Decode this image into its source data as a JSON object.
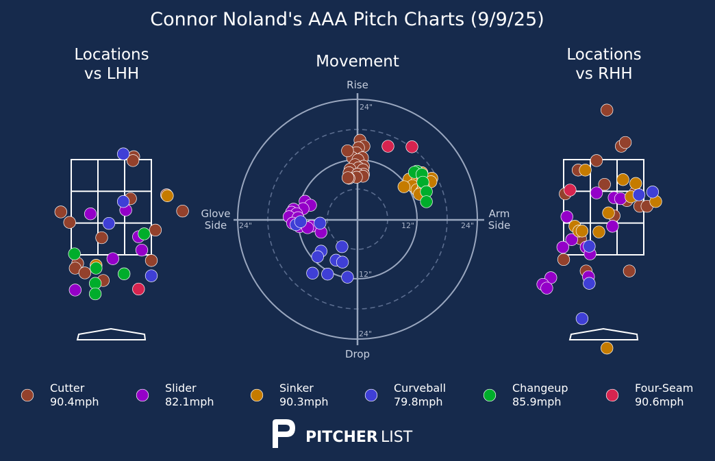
{
  "page": {
    "title": "Connor Noland's AAA Pitch Charts (9/9/25)",
    "background": "#162a4c",
    "brand": {
      "bold": "PITCHER",
      "light": "LIST"
    }
  },
  "panels": {
    "left_title_line1": "Locations",
    "left_title_line2": "vs LHH",
    "right_title_line1": "Locations",
    "right_title_line2": "vs RHH",
    "movement_title": "Movement",
    "movement_labels": {
      "top": "Rise",
      "bottom": "Drop",
      "left_line1": "Glove",
      "left_line2": "Side",
      "right_line1": "Arm",
      "right_line2": "Side"
    },
    "ring_labels": {
      "top24": "24\"",
      "left24": "24\"",
      "right12": "12\"",
      "right24": "24\"",
      "bottom12": "12\"",
      "bottom24": "24\""
    }
  },
  "pitch_types": [
    {
      "key": "cutter",
      "name": "Cutter",
      "velo": "90.4mph",
      "color": "#93412c"
    },
    {
      "key": "slider",
      "name": "Slider",
      "velo": "82.1mph",
      "color": "#9400c8"
    },
    {
      "key": "sinker",
      "name": "Sinker",
      "velo": "90.3mph",
      "color": "#c57b00"
    },
    {
      "key": "curveball",
      "name": "Curveball",
      "velo": "79.8mph",
      "color": "#3f3fd6"
    },
    {
      "key": "changeup",
      "name": "Changeup",
      "velo": "85.9mph",
      "color": "#00ad2b"
    },
    {
      "key": "fourseam",
      "name": "Four-Seam",
      "velo": "90.6mph",
      "color": "#d6244f"
    }
  ],
  "chart_data": [
    {
      "type": "scatter",
      "title": "Locations vs LHH",
      "x_unit": "zone widths from plate center (catcher view)",
      "y_unit": "zone heights from zone bottom",
      "points": [
        {
          "t": "cutter",
          "x": 0.28,
          "y": 1.03
        },
        {
          "t": "cutter",
          "x": 0.27,
          "y": 0.99
        },
        {
          "t": "cutter",
          "x": 0.24,
          "y": 0.59
        },
        {
          "t": "cutter",
          "x": 0.69,
          "y": 0.63
        },
        {
          "t": "cutter",
          "x": 0.89,
          "y": 0.46
        },
        {
          "t": "cutter",
          "x": 1.0,
          "y": 0.41
        },
        {
          "t": "cutter",
          "x": -0.63,
          "y": 0.45
        },
        {
          "t": "cutter",
          "x": -0.52,
          "y": 0.34
        },
        {
          "t": "cutter",
          "x": -0.12,
          "y": 0.18
        },
        {
          "t": "cutter",
          "x": 0.55,
          "y": 0.26
        },
        {
          "t": "cutter",
          "x": 0.5,
          "y": -0.06
        },
        {
          "t": "cutter",
          "x": -0.42,
          "y": -0.09
        },
        {
          "t": "cutter",
          "x": -0.45,
          "y": -0.14
        },
        {
          "t": "cutter",
          "x": -0.33,
          "y": -0.19
        },
        {
          "t": "cutter",
          "x": -0.1,
          "y": -0.27
        },
        {
          "t": "slider",
          "x": -0.26,
          "y": 0.43
        },
        {
          "t": "slider",
          "x": 0.18,
          "y": 0.47
        },
        {
          "t": "slider",
          "x": 0.34,
          "y": 0.19
        },
        {
          "t": "slider",
          "x": 0.38,
          "y": 0.05
        },
        {
          "t": "slider",
          "x": 0.02,
          "y": -0.04
        },
        {
          "t": "slider",
          "x": -0.45,
          "y": -0.37
        },
        {
          "t": "sinker",
          "x": 0.7,
          "y": 0.62
        },
        {
          "t": "sinker",
          "x": -0.19,
          "y": -0.11
        },
        {
          "t": "curveball",
          "x": 0.15,
          "y": 1.06
        },
        {
          "t": "curveball",
          "x": 0.15,
          "y": 0.56
        },
        {
          "t": "curveball",
          "x": -0.03,
          "y": 0.33
        },
        {
          "t": "curveball",
          "x": 0.5,
          "y": -0.22
        },
        {
          "t": "changeup",
          "x": 0.41,
          "y": 0.22
        },
        {
          "t": "changeup",
          "x": -0.46,
          "y": 0.01
        },
        {
          "t": "changeup",
          "x": -0.19,
          "y": -0.14
        },
        {
          "t": "changeup",
          "x": -0.2,
          "y": -0.3
        },
        {
          "t": "changeup",
          "x": 0.16,
          "y": -0.2
        },
        {
          "t": "changeup",
          "x": -0.2,
          "y": -0.41
        },
        {
          "t": "fourseam",
          "x": 0.34,
          "y": -0.36
        }
      ]
    },
    {
      "type": "scatter",
      "title": "Movement",
      "x_unit": "horizontal break (in), positive = arm side",
      "y_unit": "induced vertical break (in), positive = rise",
      "rings": [
        6,
        12,
        18,
        24
      ],
      "points": [
        {
          "t": "cutter",
          "x": 0.5,
          "y": 15.8
        },
        {
          "t": "cutter",
          "x": 1.3,
          "y": 14.6
        },
        {
          "t": "cutter",
          "x": 0.2,
          "y": 14.3
        },
        {
          "t": "cutter",
          "x": -0.2,
          "y": 13.3
        },
        {
          "t": "cutter",
          "x": 1.0,
          "y": 12.3
        },
        {
          "t": "cutter",
          "x": -1.0,
          "y": 12.3
        },
        {
          "t": "cutter",
          "x": -2.0,
          "y": 13.7
        },
        {
          "t": "cutter",
          "x": 0.1,
          "y": 11.9
        },
        {
          "t": "cutter",
          "x": 1.2,
          "y": 10.6
        },
        {
          "t": "cutter",
          "x": -0.5,
          "y": 10.9
        },
        {
          "t": "cutter",
          "x": 0.2,
          "y": 10.3
        },
        {
          "t": "cutter",
          "x": 1.1,
          "y": 9.9
        },
        {
          "t": "cutter",
          "x": -1.5,
          "y": 10.0
        },
        {
          "t": "cutter",
          "x": 1.2,
          "y": 9.0
        },
        {
          "t": "cutter",
          "x": -1.7,
          "y": 9.3
        },
        {
          "t": "cutter",
          "x": 0.0,
          "y": 9.0
        },
        {
          "t": "cutter",
          "x": 1.1,
          "y": 8.6
        },
        {
          "t": "cutter",
          "x": -0.2,
          "y": 8.4
        },
        {
          "t": "cutter",
          "x": -1.7,
          "y": 8.2
        },
        {
          "t": "cutter",
          "x": -1.9,
          "y": 8.3
        },
        {
          "t": "slider",
          "x": -10.5,
          "y": 3.6
        },
        {
          "t": "slider",
          "x": -9.4,
          "y": 2.8
        },
        {
          "t": "slider",
          "x": -10.9,
          "y": 2.1
        },
        {
          "t": "slider",
          "x": -12.8,
          "y": 2.0
        },
        {
          "t": "slider",
          "x": -13.2,
          "y": 1.4
        },
        {
          "t": "slider",
          "x": -12.2,
          "y": 1.1
        },
        {
          "t": "slider",
          "x": -13.7,
          "y": 0.5
        },
        {
          "t": "slider",
          "x": -11.9,
          "y": 0.3
        },
        {
          "t": "slider",
          "x": -13.0,
          "y": -0.8
        },
        {
          "t": "slider",
          "x": -11.6,
          "y": -1.5
        },
        {
          "t": "slider",
          "x": -9.2,
          "y": -1.4
        },
        {
          "t": "slider",
          "x": -7.3,
          "y": -2.6
        },
        {
          "t": "slider",
          "x": -10.0,
          "y": -1.7
        },
        {
          "t": "sinker",
          "x": 12.9,
          "y": 9.3
        },
        {
          "t": "sinker",
          "x": 10.3,
          "y": 8.0
        },
        {
          "t": "sinker",
          "x": 11.8,
          "y": 7.4
        },
        {
          "t": "sinker",
          "x": 13.1,
          "y": 8.0
        },
        {
          "t": "sinker",
          "x": 14.9,
          "y": 8.2
        },
        {
          "t": "sinker",
          "x": 11.0,
          "y": 6.7
        },
        {
          "t": "sinker",
          "x": 9.3,
          "y": 6.5
        },
        {
          "t": "sinker",
          "x": 11.9,
          "y": 5.9
        },
        {
          "t": "sinker",
          "x": 12.8,
          "y": 5.5
        },
        {
          "t": "sinker",
          "x": 14.7,
          "y": 7.5
        },
        {
          "t": "sinker",
          "x": 13.2,
          "y": 6.6
        },
        {
          "t": "sinker",
          "x": 12.4,
          "y": 5.0
        },
        {
          "t": "curveball",
          "x": -7.5,
          "y": -0.8
        },
        {
          "t": "curveball",
          "x": -12.3,
          "y": -1.1
        },
        {
          "t": "curveball",
          "x": -11.4,
          "y": -0.5
        },
        {
          "t": "curveball",
          "x": -3.1,
          "y": -5.5
        },
        {
          "t": "curveball",
          "x": -7.3,
          "y": -6.4
        },
        {
          "t": "curveball",
          "x": -8.0,
          "y": -7.5
        },
        {
          "t": "curveball",
          "x": -4.3,
          "y": -8.2
        },
        {
          "t": "curveball",
          "x": -3.0,
          "y": -8.6
        },
        {
          "t": "curveball",
          "x": -9.0,
          "y": -10.8
        },
        {
          "t": "curveball",
          "x": -6.0,
          "y": -11.0
        },
        {
          "t": "curveball",
          "x": -2.0,
          "y": -11.6
        },
        {
          "t": "changeup",
          "x": 11.9,
          "y": 9.6
        },
        {
          "t": "changeup",
          "x": 11.4,
          "y": 9.4
        },
        {
          "t": "changeup",
          "x": 12.9,
          "y": 9.0
        },
        {
          "t": "changeup",
          "x": 13.1,
          "y": 7.4
        },
        {
          "t": "changeup",
          "x": 13.8,
          "y": 5.5
        },
        {
          "t": "changeup",
          "x": 13.8,
          "y": 3.5
        },
        {
          "t": "fourseam",
          "x": 6.1,
          "y": 14.6
        },
        {
          "t": "fourseam",
          "x": 10.9,
          "y": 14.5
        }
      ]
    },
    {
      "type": "scatter",
      "title": "Locations vs RHH",
      "x_unit": "zone widths from plate center (catcher view)",
      "y_unit": "zone heights from zone bottom",
      "points": [
        {
          "t": "cutter",
          "x": 0.04,
          "y": 1.52
        },
        {
          "t": "cutter",
          "x": 0.22,
          "y": 1.14
        },
        {
          "t": "cutter",
          "x": 0.27,
          "y": 1.18
        },
        {
          "t": "cutter",
          "x": -0.09,
          "y": 0.99
        },
        {
          "t": "cutter",
          "x": -0.32,
          "y": 0.89
        },
        {
          "t": "cutter",
          "x": 0.01,
          "y": 0.74
        },
        {
          "t": "cutter",
          "x": 0.29,
          "y": 0.57
        },
        {
          "t": "cutter",
          "x": 0.45,
          "y": 0.51
        },
        {
          "t": "cutter",
          "x": 0.54,
          "y": 0.51
        },
        {
          "t": "cutter",
          "x": 0.39,
          "y": 0.65
        },
        {
          "t": "cutter",
          "x": -0.48,
          "y": 0.64
        },
        {
          "t": "cutter",
          "x": 0.13,
          "y": 0.41
        },
        {
          "t": "cutter",
          "x": -0.29,
          "y": 0.17
        },
        {
          "t": "cutter",
          "x": -0.5,
          "y": -0.05
        },
        {
          "t": "cutter",
          "x": -0.22,
          "y": -0.17
        },
        {
          "t": "cutter",
          "x": 0.32,
          "y": -0.17
        },
        {
          "t": "slider",
          "x": -0.09,
          "y": 0.65
        },
        {
          "t": "slider",
          "x": 0.13,
          "y": 0.6
        },
        {
          "t": "slider",
          "x": 0.21,
          "y": 0.59
        },
        {
          "t": "slider",
          "x": -0.46,
          "y": 0.4
        },
        {
          "t": "slider",
          "x": 0.11,
          "y": 0.3
        },
        {
          "t": "slider",
          "x": -0.4,
          "y": 0.16
        },
        {
          "t": "slider",
          "x": -0.22,
          "y": 0.08
        },
        {
          "t": "slider",
          "x": -0.51,
          "y": 0.08
        },
        {
          "t": "slider",
          "x": -0.17,
          "y": 0.01
        },
        {
          "t": "slider",
          "x": -0.66,
          "y": -0.24
        },
        {
          "t": "slider",
          "x": -0.76,
          "y": -0.31
        },
        {
          "t": "slider",
          "x": -0.71,
          "y": -0.35
        },
        {
          "t": "slider",
          "x": -0.19,
          "y": -0.23
        },
        {
          "t": "sinker",
          "x": -0.23,
          "y": 0.89
        },
        {
          "t": "sinker",
          "x": 0.24,
          "y": 0.79
        },
        {
          "t": "sinker",
          "x": 0.4,
          "y": 0.75
        },
        {
          "t": "sinker",
          "x": 0.65,
          "y": 0.56
        },
        {
          "t": "sinker",
          "x": 0.34,
          "y": 0.61
        },
        {
          "t": "sinker",
          "x": 0.06,
          "y": 0.44
        },
        {
          "t": "sinker",
          "x": -0.36,
          "y": 0.3
        },
        {
          "t": "sinker",
          "x": -0.31,
          "y": 0.25
        },
        {
          "t": "sinker",
          "x": -0.27,
          "y": 0.25
        },
        {
          "t": "sinker",
          "x": -0.06,
          "y": 0.24
        },
        {
          "t": "sinker",
          "x": 0.04,
          "y": -0.98
        },
        {
          "t": "curveball",
          "x": 0.61,
          "y": 0.66
        },
        {
          "t": "curveball",
          "x": 0.44,
          "y": 0.63
        },
        {
          "t": "curveball",
          "x": -0.18,
          "y": 0.09
        },
        {
          "t": "curveball",
          "x": -0.18,
          "y": -0.3
        },
        {
          "t": "curveball",
          "x": -0.27,
          "y": -0.67
        },
        {
          "t": "fourseam",
          "x": -0.42,
          "y": 0.68
        }
      ]
    }
  ]
}
